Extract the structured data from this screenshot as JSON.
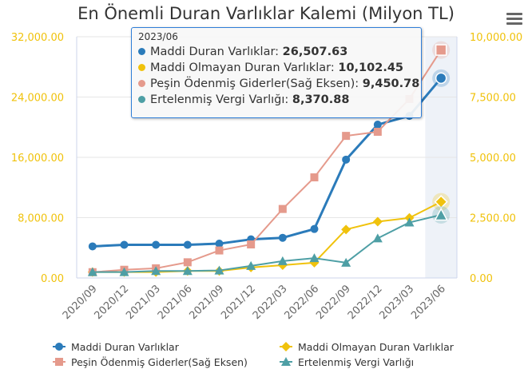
{
  "chart_data": {
    "type": "line",
    "title": "En Önemli Duran Varlıklar Kalemi (Milyon TL)",
    "categories": [
      "2020/09",
      "2020/12",
      "2021/03",
      "2021/06",
      "2021/09",
      "2021/12",
      "2022/03",
      "2022/06",
      "2022/09",
      "2022/12",
      "2023/03",
      "2023/06"
    ],
    "y_left": {
      "ticks": [
        "0.00",
        "8,000.00",
        "16,000.00",
        "24,000.00",
        "32,000.00"
      ],
      "range": [
        0,
        32000
      ]
    },
    "y_right": {
      "ticks": [
        "0.00",
        "2,500.00",
        "5,000.00",
        "7,500.00",
        "10,000.00"
      ],
      "range": [
        0,
        10000
      ]
    },
    "series": [
      {
        "name": "Maddi Duran Varlıklar",
        "axis": "left",
        "color": "#2b7bba",
        "marker": "circle",
        "values": [
          4190,
          4400,
          4400,
          4400,
          4550,
          5120,
          5330,
          6500,
          15700,
          20340,
          21500,
          26507.63
        ]
      },
      {
        "name": "Maddi Olmayan Duran Varlıklar",
        "axis": "left",
        "color": "#f0c20c",
        "marker": "diamond",
        "values": [
          780,
          780,
          780,
          930,
          930,
          1390,
          1700,
          2030,
          6430,
          7470,
          7970,
          10102.45
        ]
      },
      {
        "name": "Peşin Ödenmiş Giderler(Sağ Eksen)",
        "axis": "right",
        "color": "#e59a8c",
        "marker": "square",
        "values": [
          240,
          340,
          400,
          650,
          1140,
          1390,
          2860,
          4170,
          5890,
          6060,
          7420,
          9450.78
        ]
      },
      {
        "name": "Ertelenmiş Vergi Varlığı",
        "axis": "left",
        "color": "#4e9fa5",
        "marker": "triangle",
        "values": [
          780,
          780,
          930,
          930,
          1000,
          1600,
          2240,
          2630,
          2030,
          5260,
          7360,
          8370.88
        ]
      }
    ],
    "legend": "bottom",
    "grid": true,
    "tooltip": {
      "header": "2023/06",
      "rows": [
        {
          "label": "Maddi Duran Varlıklar: ",
          "value": "26,507.63"
        },
        {
          "label": "Maddi Olmayan Duran Varlıklar: ",
          "value": "10,102.45"
        },
        {
          "label": "Peşin Ödenmiş Giderler(Sağ Eksen): ",
          "value": "9,450.78"
        },
        {
          "label": "Ertelenmiş Vergi Varlığı: ",
          "value": "8,370.88"
        }
      ]
    }
  }
}
